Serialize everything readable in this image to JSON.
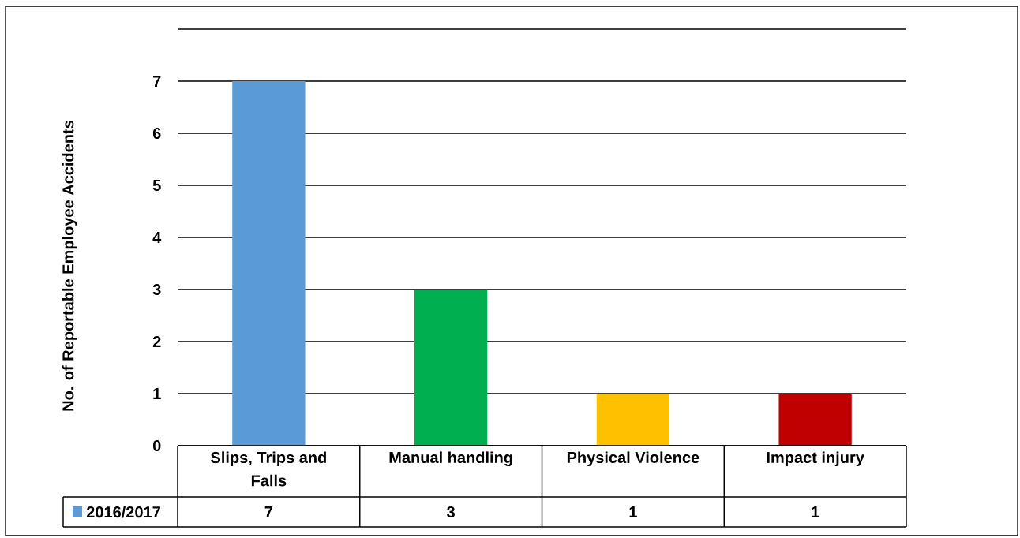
{
  "chart_data": {
    "type": "bar",
    "ylabel": "No. of Reportable Employee Accidents",
    "categories": [
      "Slips, Trips and Falls",
      "Manual handling",
      "Physical Violence",
      "Impact injury"
    ],
    "series": [
      {
        "name": "2016/2017",
        "color": "#5b9bd5",
        "colors": [
          "#5b9bd5",
          "#00b050",
          "#ffc000",
          "#c00000"
        ],
        "values": [
          7,
          3,
          1,
          1
        ]
      }
    ],
    "ylim": [
      0,
      8
    ],
    "yticks": [
      0,
      1,
      2,
      3,
      4,
      5,
      6,
      7,
      {
        "value": 8,
        "label": null
      }
    ],
    "grid": "y",
    "legend": "bottom",
    "data_labels": true
  }
}
